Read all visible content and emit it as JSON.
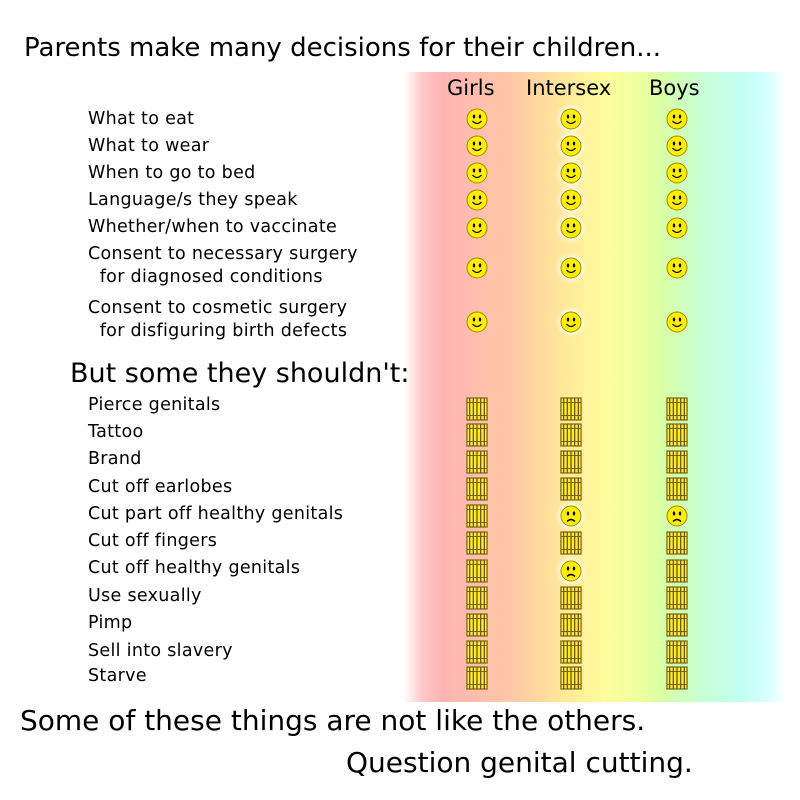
{
  "title": "Parents make many decisions for their children...",
  "columns": [
    "Girls",
    "Intersex",
    "Boys"
  ],
  "section1_items": [
    "What to eat",
    "What to wear",
    "When to go to bed",
    "Language/s they speak",
    "Whether/when to vaccinate",
    "Consent to necessary surgery\n  for diagnosed conditions",
    "Consent to cosmetic surgery\n  for disfiguring birth defects"
  ],
  "section2_heading": "But some they shouldn't:",
  "section2_items": [
    "Pierce genitals",
    "Tattoo",
    "Brand",
    "Cut off earlobes",
    "Cut part off healthy genitals",
    "Cut off fingers",
    "Cut off healthy genitals",
    "Use sexually",
    "Pimp",
    "Sell into slavery",
    "Starve"
  ],
  "section1_marks": [
    [
      "smiley-icon",
      "smiley-icon",
      "smiley-icon"
    ],
    [
      "smiley-icon",
      "smiley-icon",
      "smiley-icon"
    ],
    [
      "smiley-icon",
      "smiley-icon",
      "smiley-icon"
    ],
    [
      "smiley-icon",
      "smiley-icon",
      "smiley-icon"
    ],
    [
      "smiley-icon",
      "smiley-icon",
      "smiley-icon"
    ],
    [
      "smiley-icon",
      "smiley-icon",
      "smiley-icon"
    ],
    [
      "smiley-icon",
      "smiley-icon",
      "smiley-icon"
    ]
  ],
  "section2_marks": [
    [
      "jail-icon",
      "jail-icon",
      "jail-icon"
    ],
    [
      "jail-icon",
      "jail-icon",
      "jail-icon"
    ],
    [
      "jail-icon",
      "jail-icon",
      "jail-icon"
    ],
    [
      "jail-icon",
      "jail-icon",
      "jail-icon"
    ],
    [
      "jail-icon",
      "frown-icon",
      "frown-icon"
    ],
    [
      "jail-icon",
      "jail-icon",
      "jail-icon"
    ],
    [
      "jail-icon",
      "frown-icon",
      "jail-icon"
    ],
    [
      "jail-icon",
      "jail-icon",
      "jail-icon"
    ],
    [
      "jail-icon",
      "jail-icon",
      "jail-icon"
    ],
    [
      "jail-icon",
      "jail-icon",
      "jail-icon"
    ],
    [
      "jail-icon",
      "jail-icon",
      "jail-icon"
    ]
  ],
  "footer": [
    "Some of these things are not like the others.",
    "Question genital cutting."
  ],
  "colors": {
    "face": "#ffee00",
    "face_outline": "#9a8a00",
    "jail_bars": "#6b5a00",
    "jail_fill": "#ffe54a"
  }
}
